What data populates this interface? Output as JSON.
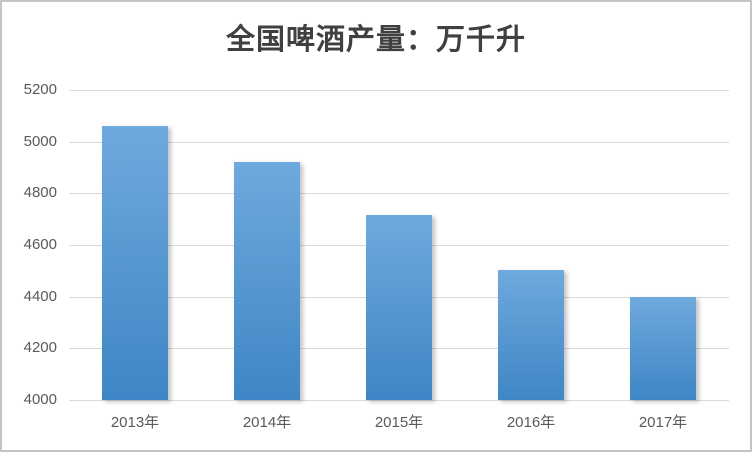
{
  "title": "全国啤酒产量：万千升",
  "colors": {
    "bar_top": "#6FA9DE",
    "bar_bottom": "#3E86C5",
    "gridline": "#D9D9D9",
    "axis_text": "#595959",
    "title_text": "#404040",
    "frame_border": "#C5C5C5",
    "background": "#FFFFFF"
  },
  "chart_data": {
    "type": "bar",
    "title": "全国啤酒产量：万千升",
    "categories": [
      "2013年",
      "2014年",
      "2015年",
      "2016年",
      "2017年"
    ],
    "values": [
      5060,
      4920,
      4715,
      4505,
      4400
    ],
    "xlabel": "",
    "ylabel": "",
    "ylim": [
      4000,
      5200
    ],
    "ytick_step": 200,
    "yticks": [
      5200,
      5000,
      4800,
      4600,
      4400,
      4200,
      4000
    ],
    "grid": true,
    "legend": "none"
  }
}
